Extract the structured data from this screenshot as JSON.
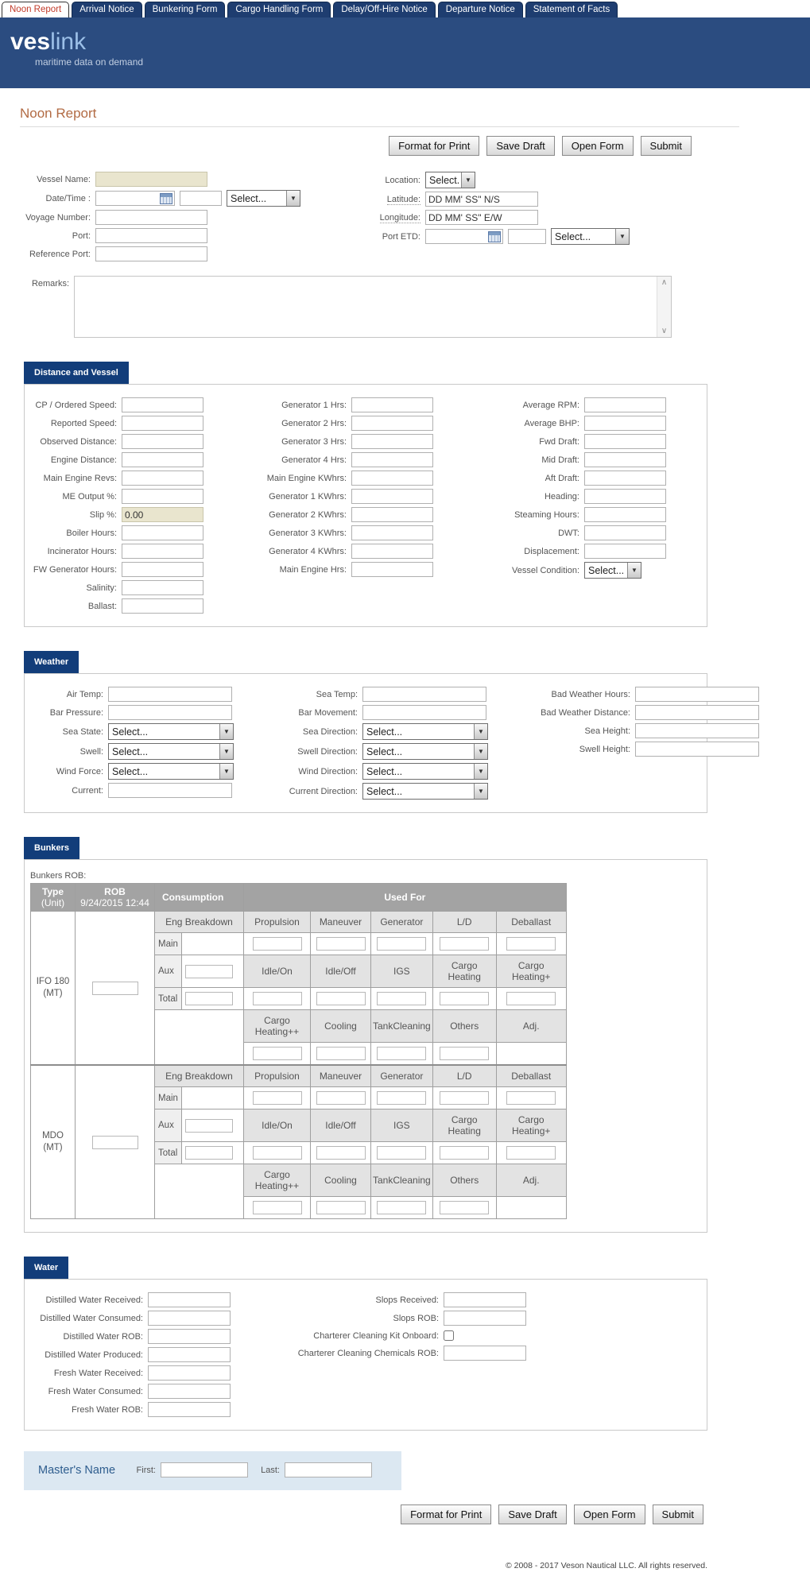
{
  "tabs": [
    {
      "label": "Noon Report",
      "active": true
    },
    {
      "label": "Arrival Notice",
      "active": false
    },
    {
      "label": "Bunkering Form",
      "active": false
    },
    {
      "label": "Cargo Handling Form",
      "active": false
    },
    {
      "label": "Delay/Off-Hire Notice",
      "active": false
    },
    {
      "label": "Departure Notice",
      "active": false
    },
    {
      "label": "Statement of Facts",
      "active": false
    }
  ],
  "brand": {
    "ves": "ves",
    "link": "link",
    "tagline": "maritime data on demand"
  },
  "page": {
    "title": "Noon Report"
  },
  "actions": {
    "format_for_print": "Format for Print",
    "save_draft": "Save Draft",
    "open_form": "Open Form",
    "submit": "Submit"
  },
  "icons": {
    "chevron_down": "▼",
    "scroll_up": "∧",
    "scroll_down": "∨"
  },
  "general": {
    "vessel_name_label": "Vessel Name:",
    "datetime_label": "Date/Time :",
    "voyage_number_label": "Voyage Number:",
    "port_label": "Port:",
    "reference_port_label": "Reference Port:",
    "remarks_label": "Remarks:",
    "location_label": "Location:",
    "latitude_label": "Latitude:",
    "longitude_label": "Longitude:",
    "port_etd_label": "Port ETD:",
    "select_placeholder": "Select...",
    "latitude_value": "DD MM' SS\" N/S",
    "longitude_value": "DD MM' SS\" E/W"
  },
  "sections": {
    "distance": {
      "title": "Distance and Vessel",
      "col1": [
        {
          "label": "CP / Ordered Speed:",
          "type": "text"
        },
        {
          "label": "Reported Speed:",
          "type": "text"
        },
        {
          "label": "Observed Distance:",
          "type": "text"
        },
        {
          "label": "Engine Distance:",
          "type": "text"
        },
        {
          "label": "Main Engine Revs:",
          "type": "text"
        },
        {
          "label": "ME Output %:",
          "type": "text"
        },
        {
          "label": "Slip %:",
          "type": "readonly",
          "value": "0.00"
        },
        {
          "label": "Boiler Hours:",
          "type": "text"
        },
        {
          "label": "Incinerator Hours:",
          "type": "text"
        },
        {
          "label": "FW Generator Hours:",
          "type": "text"
        },
        {
          "label": "Salinity:",
          "type": "text"
        },
        {
          "label": "Ballast:",
          "type": "text"
        }
      ],
      "col2": [
        {
          "label": "Generator 1 Hrs:",
          "type": "text"
        },
        {
          "label": "Generator 2 Hrs:",
          "type": "text"
        },
        {
          "label": "Generator 3 Hrs:",
          "type": "text"
        },
        {
          "label": "Generator 4 Hrs:",
          "type": "text"
        },
        {
          "label": "Main Engine KWhrs:",
          "type": "text"
        },
        {
          "label": "Generator 1 KWhrs:",
          "type": "text"
        },
        {
          "label": "Generator 2 KWhrs:",
          "type": "text"
        },
        {
          "label": "Generator 3 KWhrs:",
          "type": "text"
        },
        {
          "label": "Generator 4 KWhrs:",
          "type": "text"
        },
        {
          "label": "Main Engine Hrs:",
          "type": "text"
        }
      ],
      "col3": [
        {
          "label": "Average RPM:",
          "type": "text"
        },
        {
          "label": "Average BHP:",
          "type": "text"
        },
        {
          "label": "Fwd Draft:",
          "type": "text"
        },
        {
          "label": "Mid Draft:",
          "type": "text"
        },
        {
          "label": "Aft Draft:",
          "type": "text"
        },
        {
          "label": "Heading:",
          "type": "text"
        },
        {
          "label": "Steaming Hours:",
          "type": "text"
        },
        {
          "label": "DWT:",
          "type": "text"
        },
        {
          "label": "Displacement:",
          "type": "text"
        },
        {
          "label": "Vessel Condition:",
          "type": "select",
          "cls": "sel-vc"
        }
      ]
    },
    "weather": {
      "title": "Weather",
      "col1": [
        {
          "label": "Air Temp:",
          "type": "text"
        },
        {
          "label": "Bar Pressure:",
          "type": "text"
        },
        {
          "label": "Sea State:",
          "type": "select",
          "cls": "sel-lg"
        },
        {
          "label": "Swell:",
          "type": "select",
          "cls": "sel-lg"
        },
        {
          "label": "Wind Force:",
          "type": "select",
          "cls": "sel-lg"
        },
        {
          "label": "Current:",
          "type": "text"
        }
      ],
      "col2": [
        {
          "label": "Sea Temp:",
          "type": "text"
        },
        {
          "label": "Bar Movement:",
          "type": "text"
        },
        {
          "label": "Sea Direction:",
          "type": "select",
          "cls": "sel-lg"
        },
        {
          "label": "Swell Direction:",
          "type": "select",
          "cls": "sel-lg"
        },
        {
          "label": "Wind Direction:",
          "type": "select",
          "cls": "sel-lg"
        },
        {
          "label": "Current Direction:",
          "type": "select",
          "cls": "sel-lg"
        }
      ],
      "col3": [
        {
          "label": "Bad Weather Hours:",
          "type": "text"
        },
        {
          "label": "Bad Weather Distance:",
          "type": "text"
        },
        {
          "label": "Sea Height:",
          "type": "text"
        },
        {
          "label": "Swell Height:",
          "type": "text"
        }
      ]
    },
    "bunkers": {
      "title": "Bunkers",
      "rob_label": "Bunkers ROB:",
      "header": {
        "type": "Type",
        "type_unit": "(Unit)",
        "rob": "ROB",
        "rob_date": "9/24/2015 12:44",
        "consumption": "Consumption",
        "used_for": "Used For"
      },
      "sub1": [
        "Eng Breakdown",
        "Propulsion",
        "Maneuver",
        "Generator",
        "L/D",
        "Deballast"
      ],
      "eng_rows": [
        "Main",
        "Aux",
        "Total"
      ],
      "sub2": [
        "Idle/On",
        "Idle/Off",
        "IGS",
        "Cargo Heating",
        "Cargo Heating+"
      ],
      "sub3": [
        "Cargo Heating++",
        "Cooling",
        "TankCleaning",
        "Others",
        "Adj."
      ],
      "fuels": [
        {
          "line1": "IFO 180",
          "line2": "(MT)"
        },
        {
          "line1": "MDO",
          "line2": "(MT)"
        }
      ]
    },
    "water": {
      "title": "Water",
      "col1": [
        {
          "label": "Distilled Water Received:",
          "type": "text"
        },
        {
          "label": "Distilled Water Consumed:",
          "type": "text"
        },
        {
          "label": "Distilled Water ROB:",
          "type": "text"
        },
        {
          "label": "Distilled Water Produced:",
          "type": "text"
        },
        {
          "label": "Fresh Water Received:",
          "type": "text"
        },
        {
          "label": "Fresh Water Consumed:",
          "type": "text"
        },
        {
          "label": "Fresh Water ROB:",
          "type": "text"
        }
      ],
      "col2": [
        {
          "label": "Slops Received:",
          "type": "text"
        },
        {
          "label": "Slops ROB:",
          "type": "text"
        },
        {
          "label": "Charterer Cleaning Kit Onboard:",
          "type": "checkbox"
        },
        {
          "label": "Charterer Cleaning Chemicals ROB:",
          "type": "text"
        }
      ]
    }
  },
  "master": {
    "title": "Master's Name",
    "first_label": "First:",
    "last_label": "Last:"
  },
  "footer": {
    "copyright": "© 2008 - 2017 Veson Nautical LLC. All rights reserved."
  }
}
